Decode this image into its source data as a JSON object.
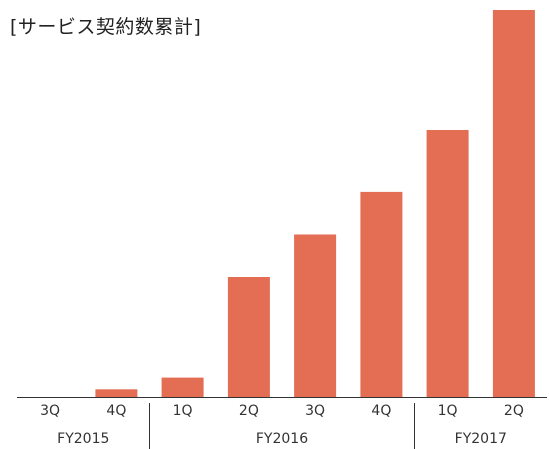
{
  "chart_data": {
    "type": "bar",
    "title": "[サービス契約数累計]",
    "categories": [
      "3Q",
      "4Q",
      "1Q",
      "2Q",
      "3Q",
      "4Q",
      "1Q",
      "2Q"
    ],
    "groups": [
      {
        "label": "FY2015",
        "start": 0,
        "end": 1
      },
      {
        "label": "FY2016",
        "start": 2,
        "end": 5
      },
      {
        "label": "FY2017",
        "start": 6,
        "end": 7
      }
    ],
    "series": [
      {
        "values": [
          0,
          2,
          5,
          31,
          42,
          53,
          69,
          100
        ]
      }
    ],
    "ylim": [
      0,
      100
    ],
    "bar_color": "#E36E53",
    "grid": false
  }
}
